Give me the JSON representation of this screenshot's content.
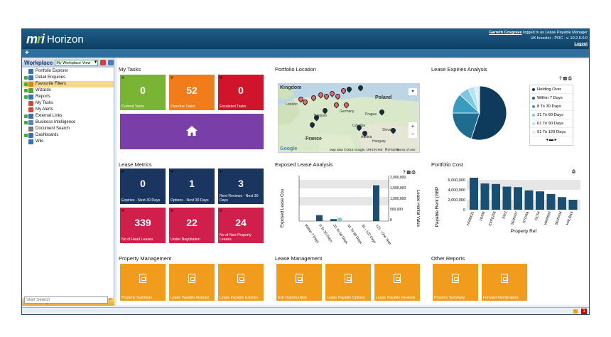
{
  "app": {
    "logo_mark": "mri",
    "logo_text": "Horizon"
  },
  "user": {
    "name": "Garreth Cosgrave",
    "logged_text": " logged in as Lease Payable Manager",
    "env": "UK Investor - POC - v. 10.2.6.0.0",
    "logout": "Logout"
  },
  "toolbar": {
    "plus": "+"
  },
  "sidebar": {
    "title": "Workplace",
    "view_select": "My Workplace View",
    "items": [
      {
        "label": "Portfolio Explorer",
        "exp": false,
        "color": "#3b6fb0"
      },
      {
        "label": "Detail Enquiries",
        "exp": true,
        "color": "#3b6fb0"
      },
      {
        "label": "Favourite Filters",
        "exp": true,
        "color": "#d08a1c",
        "selected": true
      },
      {
        "label": "Wizards",
        "exp": true,
        "color": "#5a9b3a"
      },
      {
        "label": "Reports",
        "exp": true,
        "color": "#3b6fb0"
      },
      {
        "label": "My Tasks",
        "exp": false,
        "color": "#d04a3a"
      },
      {
        "label": "My Alerts",
        "exp": false,
        "color": "#d04a3a"
      },
      {
        "label": "External Links",
        "exp": true,
        "color": "#3b6fb0"
      },
      {
        "label": "Business Intelligence",
        "exp": true,
        "color": "#6a7fb0"
      },
      {
        "label": "Document Search",
        "exp": false,
        "color": "#777"
      },
      {
        "label": "Dashboards",
        "exp": true,
        "color": "#3b6fb0"
      },
      {
        "label": "Wiki",
        "exp": false,
        "color": "#3b6fb0"
      }
    ],
    "footer_label": "Workplace",
    "search_placeholder": "Start Search"
  },
  "sections": {
    "my_tasks": "My Tasks",
    "portfolio_location": "Portfolio Location",
    "lease_expiries": "Lease Expiries Analysis",
    "lease_metrics": "Lease Metrics",
    "exposed_lease": "Exposed Lease Analysis",
    "portfolio_cost": "Portfolio Cost",
    "property_mgmt": "Property Management",
    "lease_mgmt": "Lease Management",
    "other_reports": "Other Reports"
  },
  "tasks": [
    {
      "value": "0",
      "label": "Current Tasks",
      "color": "#7ab435"
    },
    {
      "value": "52",
      "label": "Overdue Tasks",
      "color": "#f07c1c"
    },
    {
      "value": "0",
      "label": "Escalated Tasks",
      "color": "#d0142b"
    }
  ],
  "home_tile_color": "#7a3ea8",
  "metrics": [
    {
      "value": "0",
      "label": "Expiries - Next 30 Days",
      "color": "#1b3561"
    },
    {
      "value": "1",
      "label": "Options - Next 30 Days",
      "color": "#1b3561"
    },
    {
      "value": "3",
      "label": "Rent Reviews - Next 30 Days",
      "color": "#1b3561"
    },
    {
      "value": "339",
      "label": "No of Head Leases",
      "color": "#cf1f4a"
    },
    {
      "value": "22",
      "label": "Under Negotiation",
      "color": "#cf1f4a"
    },
    {
      "value": "24",
      "label": "No of Non-Property Leases",
      "color": "#cf1f4a"
    }
  ],
  "map": {
    "labels": [
      "Kingdom",
      "London",
      "Belgium",
      "Germany",
      "Poland",
      "Prague",
      "Czechia",
      "Slovakia",
      "Austria",
      "Hungary",
      "France",
      "Romania"
    ],
    "attribution": "Map data ©2018 Google, ORION-ME",
    "terms": "Terms of Use",
    "google": "Google"
  },
  "expiries_legend": [
    "Holding Over",
    "Within 7 Days",
    "8 To 30 Days",
    "31 To 60 Days",
    "61 To 90 Days",
    "91 To 120 Days"
  ],
  "expiries_colors": [
    "#0e3a5c",
    "#1f6c8e",
    "#3a9bbf",
    "#7cc8e3",
    "#b5e3f3",
    "#d8f0f8"
  ],
  "expiries_values": [
    55,
    20,
    12,
    6,
    4,
    3
  ],
  "exposed": {
    "y1label": "Exposed Lease Cou",
    "y2label": "Lease Rental Value",
    "y2ticks": [
      "2,000,000",
      "1,500,000",
      "1,000,000",
      "500,000",
      "0"
    ],
    "categories": [
      "Within 7 Days",
      "8 To 30 Days",
      "31 To 60 Days",
      "61 To 90 Days",
      "91 - 120 Days",
      "121 - One Year"
    ]
  },
  "cost": {
    "ylabel": "Payable Rent (GBP",
    "xlabel": "Property Ref",
    "yticks": [
      "6,000,000",
      "4,000,000",
      "2,000,000",
      "0"
    ],
    "categories": [
      "HS00011",
      "10436",
      "EXP0258",
      "3322",
      "SEIFP07",
      "STORA",
      "GC54",
      "WAR002",
      "SEIFP04",
      "HALIB16"
    ],
    "values": [
      6100000,
      5000000,
      4900000,
      4400000,
      4300000,
      3700000,
      3500000,
      3000000,
      2400000,
      1900000
    ]
  },
  "property_reports": [
    "Property Summary",
    "Lease Payable Abstract",
    "Lease Payable Expiries"
  ],
  "lease_reports": [
    "Exit Opportunities",
    "Lease Payable Options",
    "Lease Payable Reviews"
  ],
  "other_reports": [
    "Property Summary",
    "Forward Maintenance"
  ]
}
